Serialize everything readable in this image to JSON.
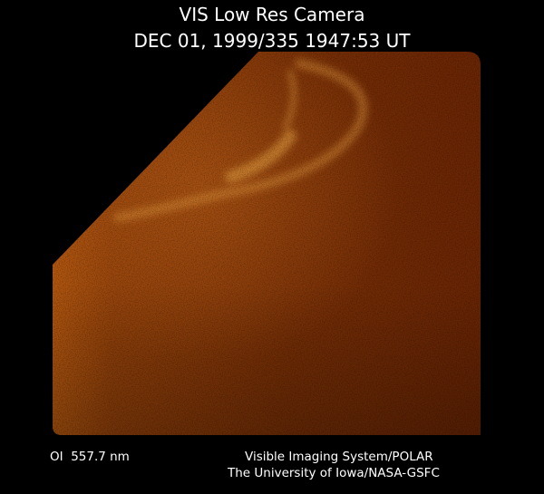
{
  "header": {
    "title": "VIS Low Res Camera",
    "timestamp": "DEC 01, 1999/335 1947:53 UT"
  },
  "footer": {
    "wavelength": "OI  557.7 nm",
    "credit_lines": [
      "Visible Imaging System/POLAR",
      "The University of Iowa/NASA-GSFC"
    ]
  }
}
